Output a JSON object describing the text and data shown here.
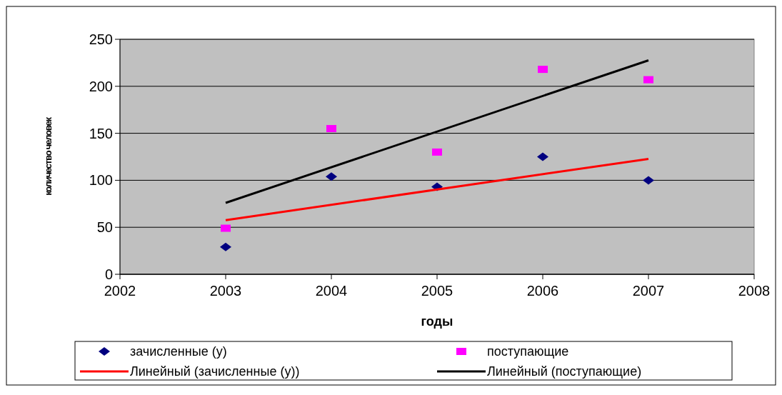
{
  "chart_data": {
    "type": "scatter",
    "xlabel": "годы",
    "ylabel": "количество человек",
    "xlim": [
      2002,
      2008
    ],
    "xticks": [
      2002,
      2003,
      2004,
      2005,
      2006,
      2007,
      2008
    ],
    "ylim": [
      0,
      250
    ],
    "yticks": [
      0,
      50,
      100,
      150,
      200,
      250
    ],
    "grid": "y",
    "legend": "bottom",
    "series": [
      {
        "name": "зачисленные (y)",
        "marker": "diamond",
        "color": "#000080",
        "x": [
          2003,
          2004,
          2005,
          2006,
          2007
        ],
        "values": [
          29,
          104,
          93,
          125,
          100
        ]
      },
      {
        "name": "поступающие",
        "marker": "square",
        "color": "#ff00ff",
        "x": [
          2003,
          2004,
          2005,
          2006,
          2007
        ],
        "values": [
          49,
          155,
          130,
          218,
          207
        ]
      },
      {
        "name": "Линейный (зачисленные (y))",
        "type": "line",
        "marker": "none",
        "color": "#ff0000",
        "x": [
          2003,
          2007
        ],
        "values": [
          57.6,
          122.8
        ]
      },
      {
        "name": "Линейный (поступающие)",
        "type": "line",
        "marker": "none",
        "color": "#000000",
        "x": [
          2003,
          2007
        ],
        "values": [
          76,
          227.6
        ]
      }
    ]
  }
}
